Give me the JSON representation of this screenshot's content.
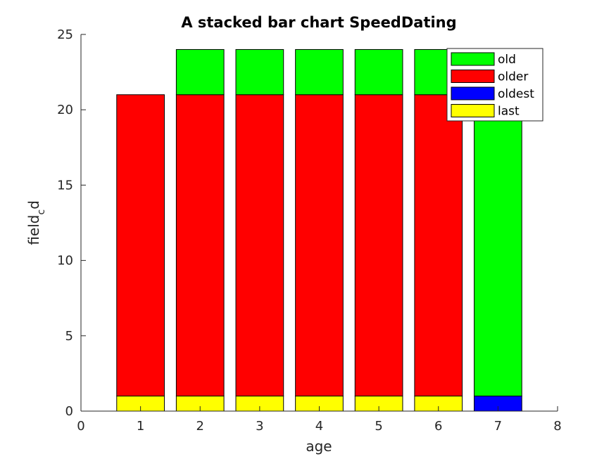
{
  "chart_data": {
    "type": "bar",
    "stacked": true,
    "title": "A stacked bar chart SpeedDating",
    "xlabel": "age",
    "ylabel": {
      "base": "field",
      "subscript": "c",
      "suffix": "d"
    },
    "xlim": [
      0,
      8
    ],
    "ylim": [
      0,
      25
    ],
    "xticks": [
      0,
      1,
      2,
      3,
      4,
      5,
      6,
      7,
      8
    ],
    "yticks": [
      0,
      5,
      10,
      15,
      20,
      25
    ],
    "categories": [
      1,
      2,
      3,
      4,
      5,
      6,
      7
    ],
    "series": [
      {
        "name": "last",
        "color": "#ffff00",
        "values": [
          1,
          1,
          1,
          1,
          1,
          1,
          0
        ]
      },
      {
        "name": "oldest",
        "color": "#0000ff",
        "values": [
          0,
          0,
          0,
          0,
          0,
          0,
          1
        ]
      },
      {
        "name": "older",
        "color": "#ff0000",
        "values": [
          20,
          20,
          20,
          20,
          20,
          20,
          0
        ]
      },
      {
        "name": "old",
        "color": "#00ff00",
        "values": [
          0,
          3,
          3,
          3,
          3,
          3,
          23
        ]
      }
    ],
    "legend": {
      "position": "top-right",
      "order": [
        "old",
        "older",
        "oldest",
        "last"
      ]
    },
    "grid": false
  }
}
